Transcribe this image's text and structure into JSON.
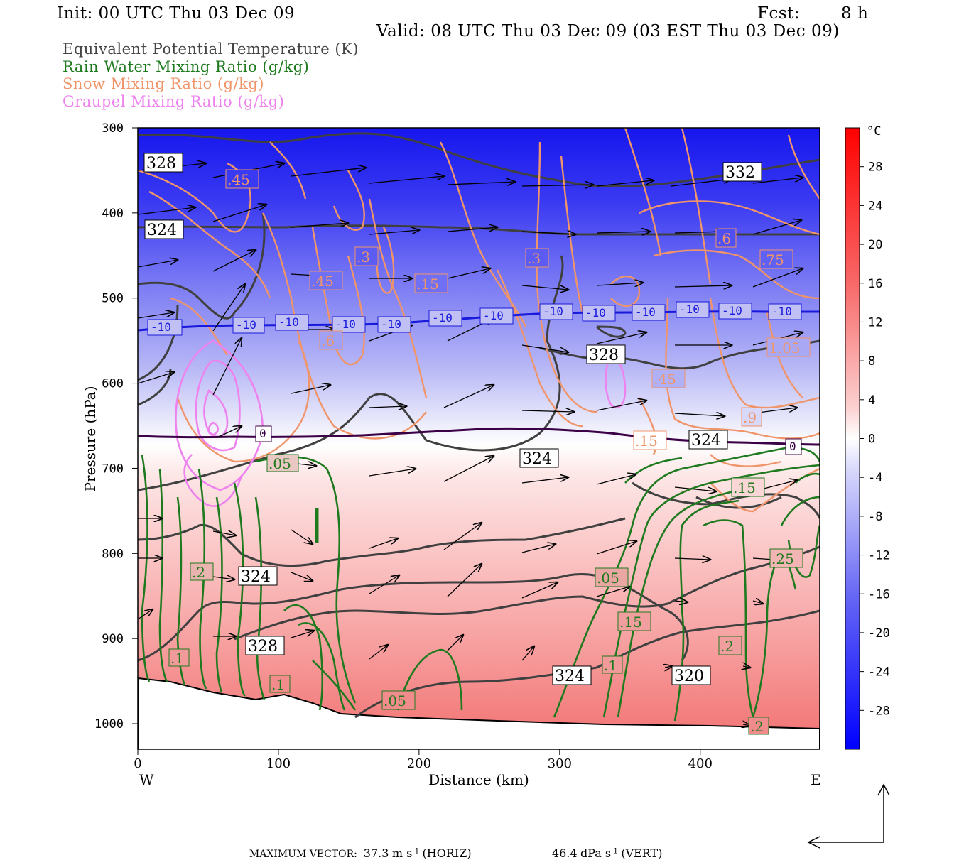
{
  "header": {
    "init": "Init: 00 UTC Thu 03 Dec 09",
    "fcst_label": "Fcst:",
    "fcst_value": "8 h",
    "valid": "Valid: 08 UTC Thu 03 Dec 09 (03 EST Thu 03 Dec 09)"
  },
  "fields": [
    {
      "label": "Equivalent Potential Temperature (K)",
      "color": "#444444"
    },
    {
      "label": "Rain Water Mixing Ratio (g/kg)",
      "color": "#1f7a1f"
    },
    {
      "label": "Snow Mixing Ratio (g/kg)",
      "color": "#f0956a"
    },
    {
      "label": "Graupel Mixing Ratio (g/kg)",
      "color": "#ee82ee"
    }
  ],
  "footer": {
    "max_vector_label": "MAXIMUM VECTOR:",
    "horiz_value": "37.3",
    "horiz_units": "m s",
    "horiz_exp": "-1",
    "horiz_tag": "(HORIZ)",
    "vert_value": "46.4",
    "vert_units": "dPa s",
    "vert_exp": "-1",
    "vert_tag": "(VERT)"
  },
  "chart_data": {
    "type": "heatmap",
    "title": "",
    "xlabel": "Distance (km)",
    "ylabel": "Pressure (hPa)",
    "x_ticks": [
      0,
      100,
      200,
      300,
      400
    ],
    "x_end_labels": {
      "left": "W",
      "right": "E"
    },
    "xlim": [
      0,
      485
    ],
    "y_ticks": [
      300,
      400,
      500,
      600,
      700,
      800,
      900,
      1000
    ],
    "ylim": [
      300,
      1030
    ],
    "colorbar": {
      "unit": "°C",
      "ticks": [
        28,
        24,
        20,
        16,
        12,
        8,
        4,
        0,
        -4,
        -8,
        -12,
        -16,
        -20,
        -24,
        -28
      ],
      "range": [
        -32,
        32
      ]
    },
    "temperature_isotherms": [
      {
        "level": -10,
        "color": "#1a1adc",
        "labels": [
          "-10",
          "-10",
          "-10",
          "-10",
          "-10",
          "-10",
          "-10",
          "-10",
          "-10",
          "-10",
          "-10",
          "-10",
          "-10"
        ]
      },
      {
        "level": 0,
        "color": "#3c0046",
        "labels": [
          "0",
          "0"
        ]
      }
    ],
    "theta_e_labels": [
      "328",
      "332",
      "324",
      "328",
      "324",
      "324",
      "328",
      "324",
      "324",
      "320"
    ],
    "rain_labels": [
      ".05",
      ".2",
      ".05",
      ".1",
      ".1",
      ".05",
      ".15",
      ".1",
      ".2",
      ".15",
      ".25",
      ".2"
    ],
    "snow_labels": [
      ".45",
      ".3",
      ".45",
      ".15",
      ".3",
      ".6",
      ".75",
      ".6",
      ".45",
      ".9",
      ".15",
      "1.05"
    ],
    "graupel_max_region_km": [
      40,
      90
    ],
    "max_vector": {
      "horiz_m_s": 37.3,
      "vert_dPa_s": 46.4
    }
  }
}
